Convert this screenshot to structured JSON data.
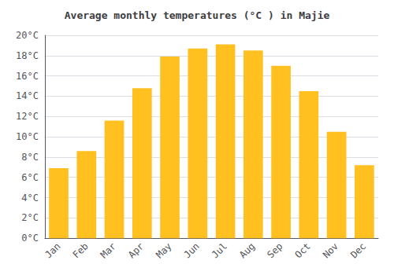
{
  "chart_data": {
    "type": "bar",
    "title": "Average monthly temperatures (°C ) in Majie",
    "categories": [
      "Jan",
      "Feb",
      "Mar",
      "Apr",
      "May",
      "Jun",
      "Jul",
      "Aug",
      "Sep",
      "Oct",
      "Nov",
      "Dec"
    ],
    "values": [
      6.9,
      8.6,
      11.6,
      14.8,
      17.9,
      18.7,
      19.1,
      18.5,
      17.0,
      14.5,
      10.5,
      7.2
    ],
    "color": "#FFC020",
    "ylim": [
      0,
      20
    ],
    "yticks": [
      {
        "value": 0,
        "label": "0°C"
      },
      {
        "value": 2,
        "label": "2°C"
      },
      {
        "value": 4,
        "label": "4°C"
      },
      {
        "value": 6,
        "label": "6°C"
      },
      {
        "value": 8,
        "label": "8°C"
      },
      {
        "value": 10,
        "label": "10°C"
      },
      {
        "value": 12,
        "label": "12°C"
      },
      {
        "value": 14,
        "label": "14°C"
      },
      {
        "value": 16,
        "label": "16°C"
      },
      {
        "value": 18,
        "label": "18°C"
      },
      {
        "value": 20,
        "label": "20°C"
      }
    ],
    "grid": true
  }
}
